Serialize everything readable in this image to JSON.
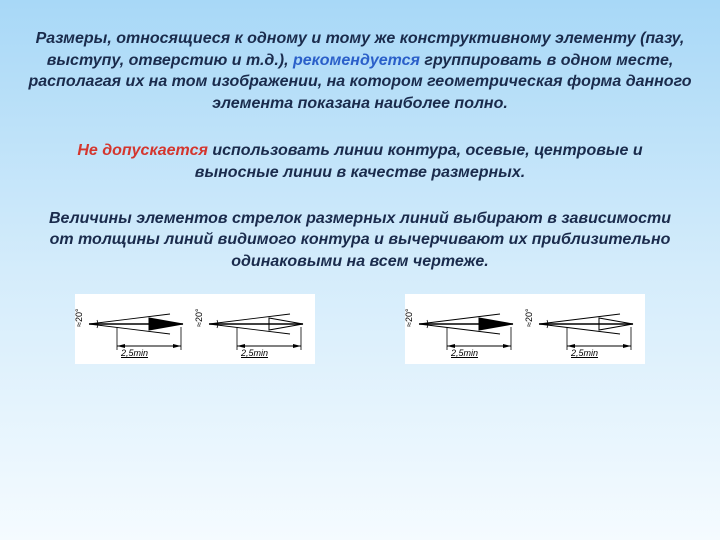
{
  "paragraph1": {
    "pre": "Размеры, относящиеся к одному и тому же конструктивному элементу (пазу, выступу, отверстию и т.д.), ",
    "accent": "рекомендуется",
    "post": " группировать в одном месте, располагая их на том изображении, на котором геометрическая форма данного элемента показана наиболее полно."
  },
  "paragraph2": {
    "accent": "Не допускается",
    "post": " использовать линии контура, осевые, центровые и выносные линии в качестве размерных."
  },
  "paragraph3": {
    "text": "Величины элементов стрелок размерных линий выбирают в зависимости от толщины линий видимого контура и вычерчивают их приблизительно одинаковыми на всем чертеже."
  },
  "arrows": {
    "dim_label": "2,5min",
    "angle_label": "≈20°",
    "items": [
      {
        "filled": true
      },
      {
        "filled": false
      },
      {
        "filled": true
      },
      {
        "filled": false
      }
    ],
    "stroke": "#000000",
    "fill_solid": "#000000",
    "fill_open": "none",
    "bg": "#ffffff"
  },
  "colors": {
    "text_main": "#1a2b4c",
    "accent_blue": "#2a5fc9",
    "accent_red": "#d4362e"
  }
}
